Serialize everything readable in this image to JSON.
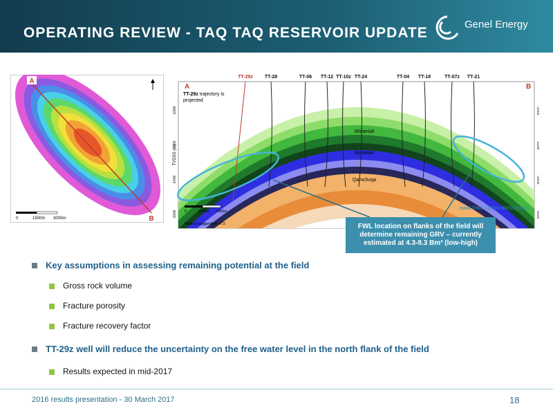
{
  "header": {
    "title": "OPERATING REVIEW - TAQ TAQ RESERVOIR UPDATE",
    "logo": "Genel Energy"
  },
  "map": {
    "start": "A",
    "end": "B",
    "scale": [
      "0",
      "1500m",
      "3000m"
    ]
  },
  "section": {
    "start": "A",
    "end": "B",
    "wells": [
      "TT-29z",
      "TT-28",
      "TT-06",
      "TT-12",
      "TT-10z",
      "TT-24",
      "TT-04",
      "TT-18",
      "TT-07z",
      "TT-21"
    ],
    "note_well": "TT-29z",
    "note": "trajectory is projected",
    "axis_label": "TVDSS (m)",
    "ticks": [
      "-1000",
      "-1200",
      "-1400",
      "-1600"
    ],
    "formations": [
      "Shiranish",
      "Kometan",
      "Qamchuqa"
    ],
    "scale": [
      "0",
      "1000m",
      "2000m"
    ],
    "exaggeration": "Vertical exaggeration: x7.5",
    "owc": "Initial OWC 1515m BMSL(tvdss)",
    "callout": "FWL location on flanks of the field will determine remaining GRV – currently estimated at 4.3-8.3 Bm³ (low-high)"
  },
  "bullets": [
    {
      "level": 1,
      "text": "Key assumptions in assessing remaining potential at the field"
    },
    {
      "level": 2,
      "text": "Gross rock volume"
    },
    {
      "level": 2,
      "text": "Fracture porosity"
    },
    {
      "level": 2,
      "text": "Fracture recovery factor"
    },
    {
      "level": 1,
      "text": "TT-29z well will reduce the uncertainty on the free water level in the north flank of the field"
    },
    {
      "level": 2,
      "text": "Results expected in mid-2017"
    }
  ],
  "footer": {
    "text": "2016 results presentation - 30 March 2017",
    "page": "18"
  }
}
